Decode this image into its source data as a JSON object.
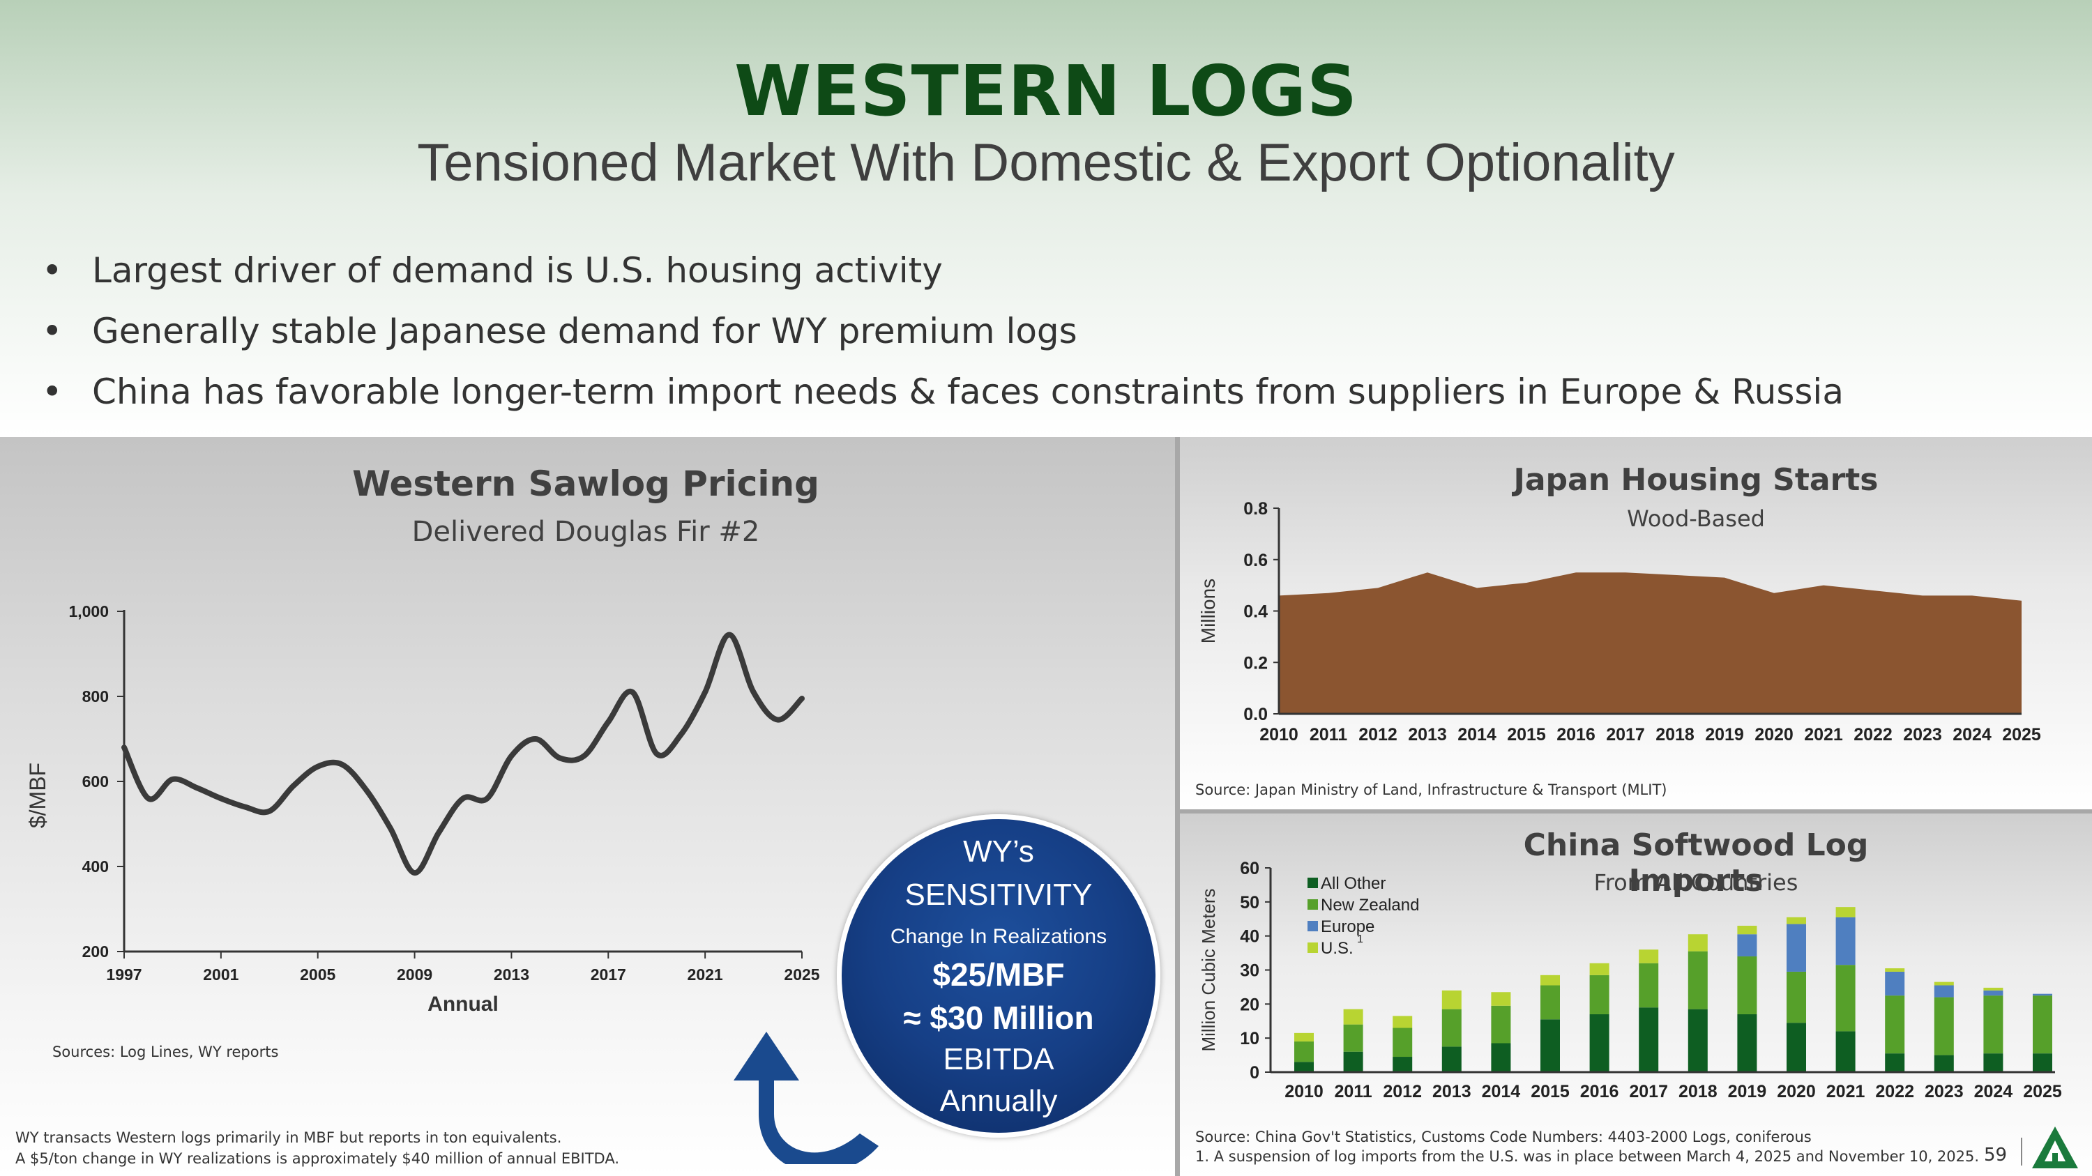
{
  "header": {
    "title": "WESTERN LOGS",
    "subtitle": "Tensioned Market With Domestic & Export Optionality"
  },
  "bullets": [
    "Largest driver of demand is U.S. housing activity",
    "Generally stable Japanese demand for WY premium logs",
    "China has favorable longer-term import needs & faces constraints from suppliers in Europe & Russia"
  ],
  "sawlog": {
    "title": "Western Sawlog Pricing",
    "subtitle": "Delivered Douglas Fir #2",
    "source": "Sources: Log Lines, WY reports"
  },
  "japan": {
    "title": "Japan Housing Starts",
    "subtitle": "Wood-Based",
    "source": "Source: Japan Ministry of Land, Infrastructure & Transport (MLIT)"
  },
  "china": {
    "title": "China Softwood Log Imports",
    "subtitle": "From All Countries",
    "source": "Source: China Gov't Statistics, Customs Code Numbers: 4403-2000 Logs, coniferous",
    "footnote": "1. A suspension of log imports from the U.S. was in place between March 4, 2025 and November 10, 2025."
  },
  "sensitivity": {
    "line1": "WY’s",
    "line2": "SENSITIVITY",
    "line3": "Change In Realizations",
    "line4": "$25/MBF",
    "line5": "≈ $30 Million",
    "line6": "EBITDA",
    "line7": "Annually"
  },
  "footnotes": {
    "line1": "WY transacts Western logs primarily in MBF but reports in ton equivalents.",
    "line2": "A $5/ton change in WY realizations is approximately $40 million of annual EBITDA."
  },
  "page_number": "59",
  "colors": {
    "title_green": "#0e4a16",
    "japan_area": "#8b5530",
    "all_other": "#0e5e22",
    "new_zealand": "#56a02a",
    "europe": "#4f7fc0",
    "us": "#b8d432",
    "sensitivity_blue": "#163f86"
  },
  "chart_data": [
    {
      "type": "line",
      "title": "Western Sawlog Pricing",
      "subtitle": "Delivered Douglas Fir #2",
      "xlabel": "Annual",
      "ylabel": "$/MBF",
      "xlim": [
        1997,
        2025
      ],
      "ylim": [
        200,
        1000
      ],
      "xticks": [
        "1997",
        "2001",
        "2005",
        "2009",
        "2013",
        "2017",
        "2021",
        "2025"
      ],
      "yticks": [
        "200",
        "400",
        "600",
        "800",
        "1,000"
      ],
      "x": [
        1997,
        1998,
        1999,
        2000,
        2001,
        2002,
        2003,
        2004,
        2005,
        2006,
        2007,
        2008,
        2009,
        2010,
        2011,
        2012,
        2013,
        2014,
        2015,
        2016,
        2017,
        2018,
        2019,
        2020,
        2021,
        2022,
        2023,
        2024,
        2025
      ],
      "values": [
        680,
        560,
        605,
        585,
        560,
        540,
        530,
        590,
        635,
        640,
        580,
        490,
        385,
        480,
        560,
        560,
        660,
        700,
        655,
        660,
        740,
        810,
        665,
        710,
        810,
        945,
        810,
        745,
        795
      ]
    },
    {
      "type": "area",
      "title": "Japan Housing Starts",
      "subtitle": "Wood-Based",
      "ylabel": "Millions",
      "ylim": [
        0,
        0.8
      ],
      "yticks": [
        "0.0",
        "0.2",
        "0.4",
        "0.6",
        "0.8"
      ],
      "categories": [
        "2010",
        "2011",
        "2012",
        "2013",
        "2014",
        "2015",
        "2016",
        "2017",
        "2018",
        "2019",
        "2020",
        "2021",
        "2022",
        "2023",
        "2024",
        "2025"
      ],
      "values": [
        0.46,
        0.47,
        0.49,
        0.55,
        0.49,
        0.51,
        0.55,
        0.55,
        0.54,
        0.53,
        0.47,
        0.5,
        0.48,
        0.46,
        0.46,
        0.44
      ]
    },
    {
      "type": "bar",
      "stacked": true,
      "title": "China Softwood Log Imports",
      "subtitle": "From All Countries",
      "ylabel": "Million Cubic Meters",
      "ylim": [
        0,
        60
      ],
      "yticks": [
        "0",
        "10",
        "20",
        "30",
        "40",
        "50",
        "60"
      ],
      "legend": [
        "All Other",
        "New Zealand",
        "Europe",
        "U.S."
      ],
      "legend_footnote_marker": "1",
      "categories": [
        "2010",
        "2011",
        "2012",
        "2013",
        "2014",
        "2015",
        "2016",
        "2017",
        "2018",
        "2019",
        "2020",
        "2021",
        "2022",
        "2023",
        "2024",
        "2025"
      ],
      "series": [
        {
          "name": "All Other",
          "values": [
            3,
            6,
            4.5,
            7.5,
            8.5,
            15.5,
            17,
            19,
            18.5,
            17,
            14.5,
            12,
            5.5,
            5,
            5.5,
            5.5
          ]
        },
        {
          "name": "New Zealand",
          "values": [
            6,
            8,
            8.5,
            11,
            11,
            10,
            11.5,
            13,
            17,
            17,
            15,
            19.5,
            17,
            17,
            17,
            17
          ]
        },
        {
          "name": "Europe",
          "values": [
            0,
            0,
            0,
            0,
            0,
            0,
            0,
            0,
            0,
            6.5,
            14,
            14,
            7,
            3.5,
            1.5,
            0.5
          ]
        },
        {
          "name": "U.S.",
          "values": [
            2.5,
            4.5,
            3.5,
            5.5,
            4,
            3,
            3.5,
            4,
            5,
            2.5,
            2,
            3,
            1,
            1,
            0.8,
            0
          ]
        }
      ]
    }
  ]
}
